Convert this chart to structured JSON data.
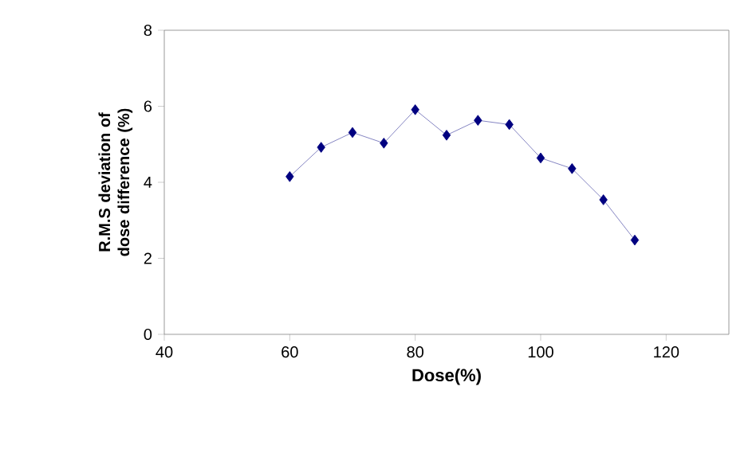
{
  "chart_data": {
    "type": "line",
    "xlabel": "Dose(%)",
    "ylabel": "R.M.S deviation of dose difference (%)",
    "x": [
      60,
      65,
      70,
      75,
      80,
      85,
      90,
      95,
      100,
      105,
      110,
      115
    ],
    "series": [
      {
        "color": "#000080",
        "values": [
          4.15,
          4.92,
          5.31,
          5.03,
          5.91,
          5.24,
          5.63,
          5.52,
          4.64,
          4.36,
          3.54,
          2.48
        ]
      }
    ],
    "xlim": [
      40,
      130
    ],
    "xticks": [
      40,
      60,
      80,
      100,
      120
    ],
    "ylim": [
      0,
      8
    ],
    "yticks": [
      0,
      2,
      4,
      6,
      8
    ],
    "grid": false,
    "marker": "diamond",
    "line_style": "solid"
  }
}
